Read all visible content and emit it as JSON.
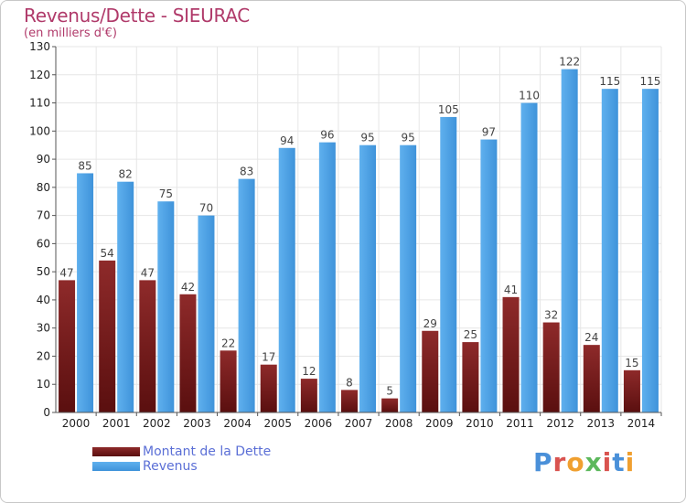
{
  "header": {
    "title": "Revenus/Dette - SIEURAC",
    "unit": "(en milliers d'€)"
  },
  "logo": {
    "text": "Proxiti",
    "letter_colors": [
      "#4a90d9",
      "#d9534f",
      "#f0a030",
      "#5cb85c",
      "#d9534f",
      "#4a90d9",
      "#f0a030"
    ]
  },
  "colors": {
    "dette": "#7a1e1e",
    "revenus": "#4da3e6",
    "title": "#b03a6a",
    "legend_text": "#5b6fd6"
  },
  "chart_data": {
    "type": "bar",
    "categories": [
      "2000",
      "2001",
      "2002",
      "2003",
      "2004",
      "2005",
      "2006",
      "2007",
      "2008",
      "2009",
      "2010",
      "2011",
      "2012",
      "2013",
      "2014"
    ],
    "series": [
      {
        "name": "Montant de la Dette",
        "values": [
          47,
          54,
          47,
          42,
          22,
          17,
          12,
          8,
          5,
          29,
          25,
          41,
          32,
          24,
          15
        ]
      },
      {
        "name": "Revenus",
        "values": [
          85,
          82,
          75,
          70,
          83,
          94,
          96,
          95,
          95,
          105,
          97,
          110,
          122,
          115,
          115
        ]
      }
    ],
    "yticks": [
      0,
      10,
      20,
      30,
      40,
      50,
      60,
      70,
      80,
      90,
      100,
      110,
      120,
      130
    ],
    "ylim": [
      0,
      130
    ],
    "grid": true,
    "legend": "bottom-left"
  }
}
